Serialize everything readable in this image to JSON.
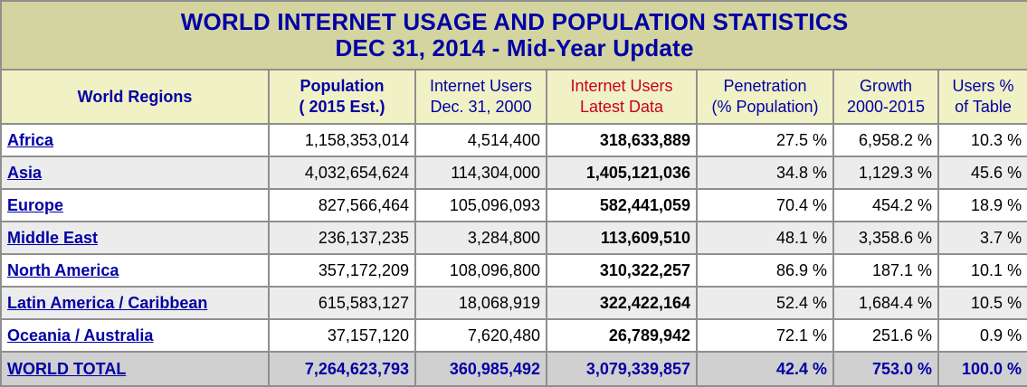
{
  "title": {
    "line1": "WORLD INTERNET USAGE AND POPULATION STATISTICS",
    "line2": "DEC 31, 2014 - Mid-Year Update"
  },
  "headers": [
    {
      "lines": [
        "World Regions"
      ],
      "style": "bold"
    },
    {
      "lines": [
        "Population",
        "( 2015 Est.)"
      ],
      "style": "bold"
    },
    {
      "lines": [
        "Internet Users",
        "Dec. 31, 2000"
      ],
      "style": "normal"
    },
    {
      "lines": [
        "Internet Users",
        "Latest Data"
      ],
      "style": "red"
    },
    {
      "lines": [
        "Penetration",
        "(% Population)"
      ],
      "style": "normal"
    },
    {
      "lines": [
        "Growth",
        "2000-2015"
      ],
      "style": "normal"
    },
    {
      "lines": [
        "Users %",
        "of Table"
      ],
      "style": "normal"
    }
  ],
  "rows": [
    {
      "region": "Africa",
      "population": "1,158,353,014",
      "users_2000": "4,514,400",
      "users_latest": "318,633,889",
      "penetration": "27.5 %",
      "growth": "6,958.2 %",
      "share": "10.3 %"
    },
    {
      "region": "Asia",
      "population": "4,032,654,624",
      "users_2000": "114,304,000",
      "users_latest": "1,405,121,036",
      "penetration": "34.8 %",
      "growth": "1,129.3 %",
      "share": "45.6 %"
    },
    {
      "region": "Europe",
      "population": "827,566,464",
      "users_2000": "105,096,093",
      "users_latest": "582,441,059",
      "penetration": "70.4 %",
      "growth": "454.2 %",
      "share": "18.9 %"
    },
    {
      "region": "Middle East",
      "population": "236,137,235",
      "users_2000": "3,284,800",
      "users_latest": "113,609,510",
      "penetration": "48.1 %",
      "growth": "3,358.6 %",
      "share": "3.7 %"
    },
    {
      "region": "North America",
      "population": "357,172,209",
      "users_2000": "108,096,800",
      "users_latest": "310,322,257",
      "penetration": "86.9 %",
      "growth": "187.1 %",
      "share": "10.1 %"
    },
    {
      "region": "Latin America / Caribbean",
      "population": "615,583,127",
      "users_2000": "18,068,919",
      "users_latest": "322,422,164",
      "penetration": "52.4 %",
      "growth": "1,684.4 %",
      "share": "10.5 %"
    },
    {
      "region": "Oceania / Australia",
      "population": "37,157,120",
      "users_2000": "7,620,480",
      "users_latest": "26,789,942",
      "penetration": "72.1 %",
      "growth": "251.6 %",
      "share": "0.9 %"
    }
  ],
  "total": {
    "region": "WORLD TOTAL",
    "population": "7,264,623,793",
    "users_2000": "360,985,492",
    "users_latest": "3,079,339,857",
    "penetration": "42.4 %",
    "growth": "753.0 %",
    "share": "100.0 %"
  }
}
